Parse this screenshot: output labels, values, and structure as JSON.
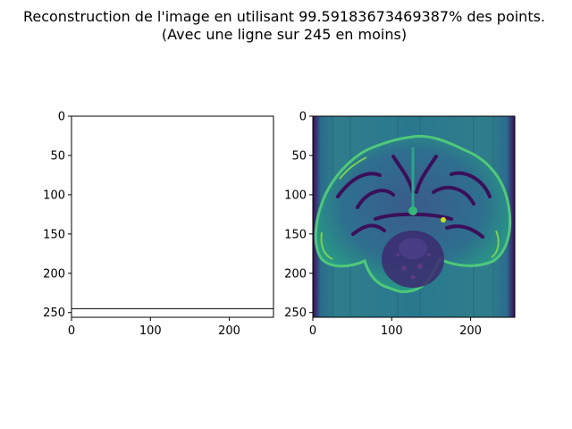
{
  "figure": {
    "title_line1": "Reconstruction de l'image en utilisant 99.59183673469387% des points.",
    "title_line2": "(Avec une ligne sur 245 en moins)"
  },
  "chart_data": [
    {
      "type": "heatmap",
      "panel": "left",
      "description_role": "mask",
      "xlim": [
        0,
        256
      ],
      "ylim": [
        256,
        0
      ],
      "x_ticks": [
        0,
        100,
        200
      ],
      "y_ticks": [
        0,
        50,
        100,
        150,
        200,
        250
      ],
      "x_tick_labels": [
        "0",
        "100",
        "200"
      ],
      "y_tick_labels": [
        "0",
        "50",
        "100",
        "150",
        "200",
        "250"
      ],
      "mask_line_row": 245,
      "colors": {
        "background": "#ffffff",
        "line": "#000000"
      }
    },
    {
      "type": "heatmap",
      "panel": "right",
      "colormap": "viridis",
      "xlim": [
        0,
        256
      ],
      "ylim": [
        256,
        0
      ],
      "x_ticks": [
        0,
        100,
        200
      ],
      "y_ticks": [
        0,
        50,
        100,
        150,
        200,
        250
      ],
      "x_tick_labels": [
        "0",
        "100",
        "200"
      ],
      "y_tick_labels": [
        "0",
        "50",
        "100",
        "150",
        "200",
        "250"
      ],
      "image_subject": "brain-mri-axial-slice",
      "colors": {
        "low": "#440154",
        "mid": "#21918c",
        "high": "#fde725",
        "background": "#2a6a8c"
      }
    }
  ]
}
